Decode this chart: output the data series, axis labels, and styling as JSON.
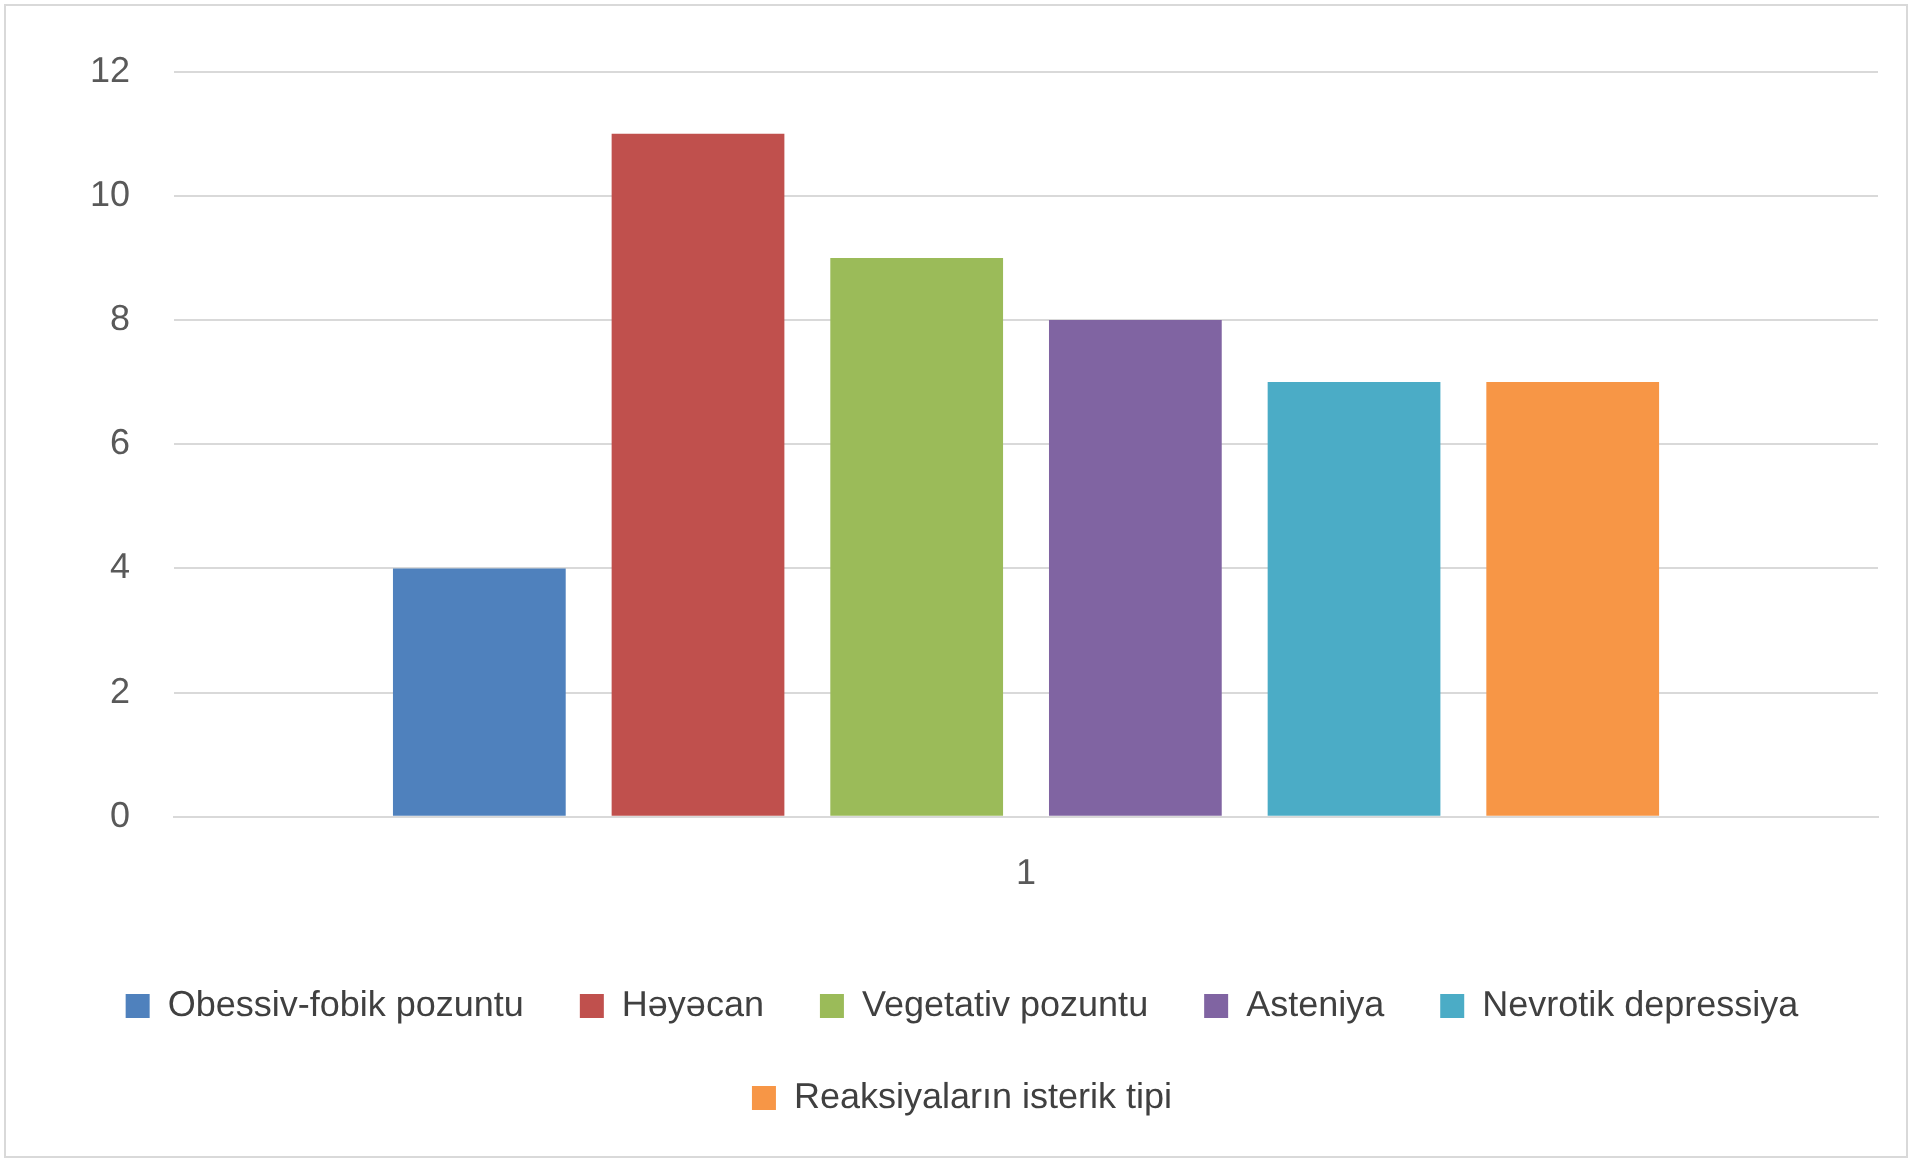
{
  "chart_data": {
    "type": "bar",
    "categories": [
      "1"
    ],
    "series": [
      {
        "name": "Obessiv-fobik pozuntu",
        "color": "#4f81bd",
        "values": [
          4
        ]
      },
      {
        "name": "Həyəcan",
        "color": "#c0504d",
        "values": [
          11
        ]
      },
      {
        "name": "Vegetativ pozuntu",
        "color": "#9bbb59",
        "values": [
          9
        ]
      },
      {
        "name": "Asteniya",
        "color": "#8064a2",
        "values": [
          8
        ]
      },
      {
        "name": "Nevrotik depressiya",
        "color": "#4bacc6",
        "values": [
          7
        ]
      },
      {
        "name": "Reaksiyaların isterik tipi",
        "color": "#f79646",
        "values": [
          7
        ]
      }
    ],
    "ylim": [
      0,
      12
    ],
    "yticks": [
      0,
      2,
      4,
      6,
      8,
      10,
      12
    ],
    "grid": "y",
    "legend": "bottom"
  }
}
